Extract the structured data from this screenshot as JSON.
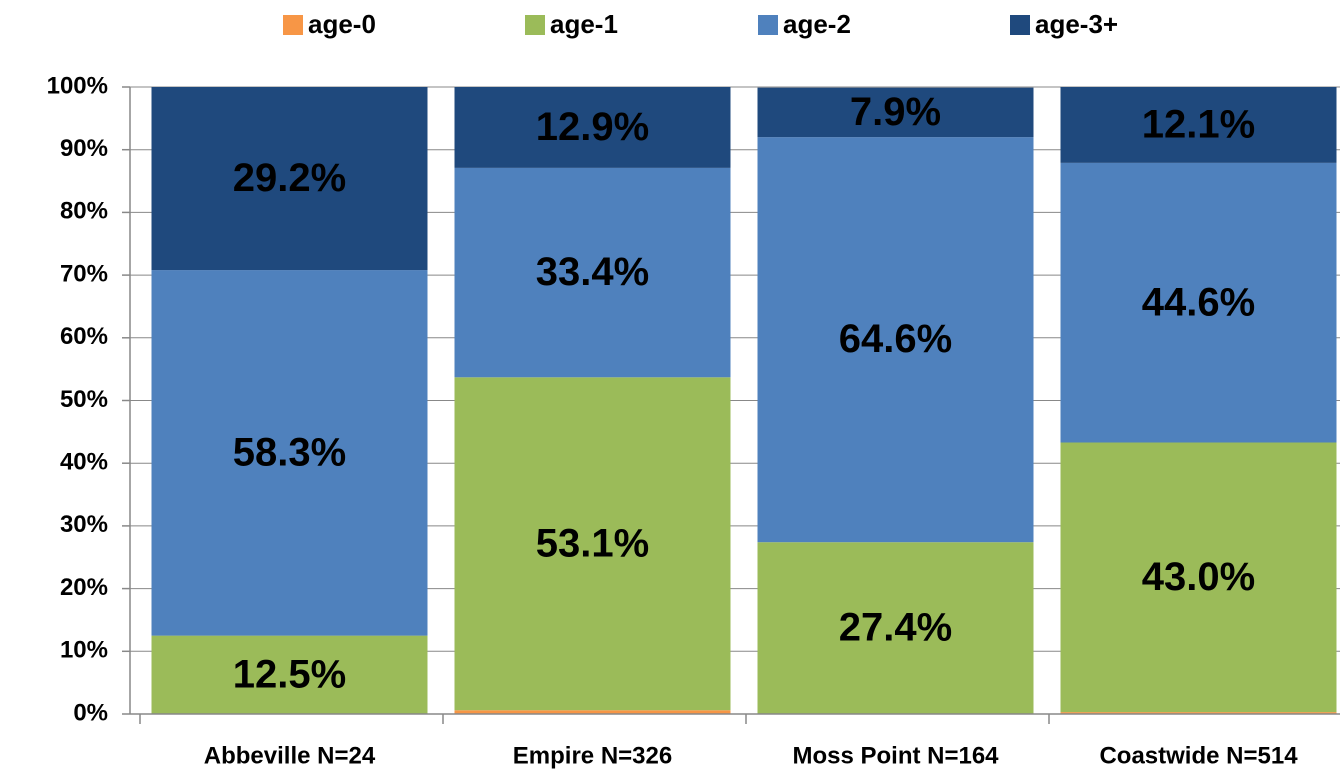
{
  "chart_data": {
    "type": "stacked_bar",
    "categories": [
      "Abbeville N=24",
      "Empire N=326",
      "Moss Point N=164",
      "Coastwide N=514"
    ],
    "series": [
      {
        "name": "age-0",
        "color": "#f79646",
        "values": [
          0,
          0.6,
          0,
          0.3
        ]
      },
      {
        "name": "age-1",
        "color": "#9bbb59",
        "values": [
          12.5,
          53.1,
          27.4,
          43.0
        ],
        "value_labels": [
          "12.5%",
          "53.1%",
          "27.4%",
          "43.0%"
        ]
      },
      {
        "name": "age-2",
        "color": "#4f81bd",
        "values": [
          58.3,
          33.4,
          64.6,
          44.6
        ],
        "value_labels": [
          "58.3%",
          "33.4%",
          "64.6%",
          "44.6%"
        ]
      },
      {
        "name": "age-3+",
        "color": "#1f497d",
        "values": [
          29.2,
          12.9,
          7.9,
          12.1
        ],
        "value_labels": [
          "29.2%",
          "12.9%",
          "7.9%",
          "12.1%"
        ]
      }
    ],
    "ylim": [
      0,
      100
    ],
    "yticks": [
      {
        "value": 0,
        "label": "0%"
      },
      {
        "value": 10,
        "label": "10%"
      },
      {
        "value": 20,
        "label": "20%"
      },
      {
        "value": 30,
        "label": "30%"
      },
      {
        "value": 40,
        "label": "40%"
      },
      {
        "value": 50,
        "label": "50%"
      },
      {
        "value": 60,
        "label": "60%"
      },
      {
        "value": 70,
        "label": "70%"
      },
      {
        "value": 80,
        "label": "80%"
      },
      {
        "value": 90,
        "label": "90%"
      },
      {
        "value": 100,
        "label": "100%"
      }
    ],
    "grid": true,
    "legend": "top"
  }
}
